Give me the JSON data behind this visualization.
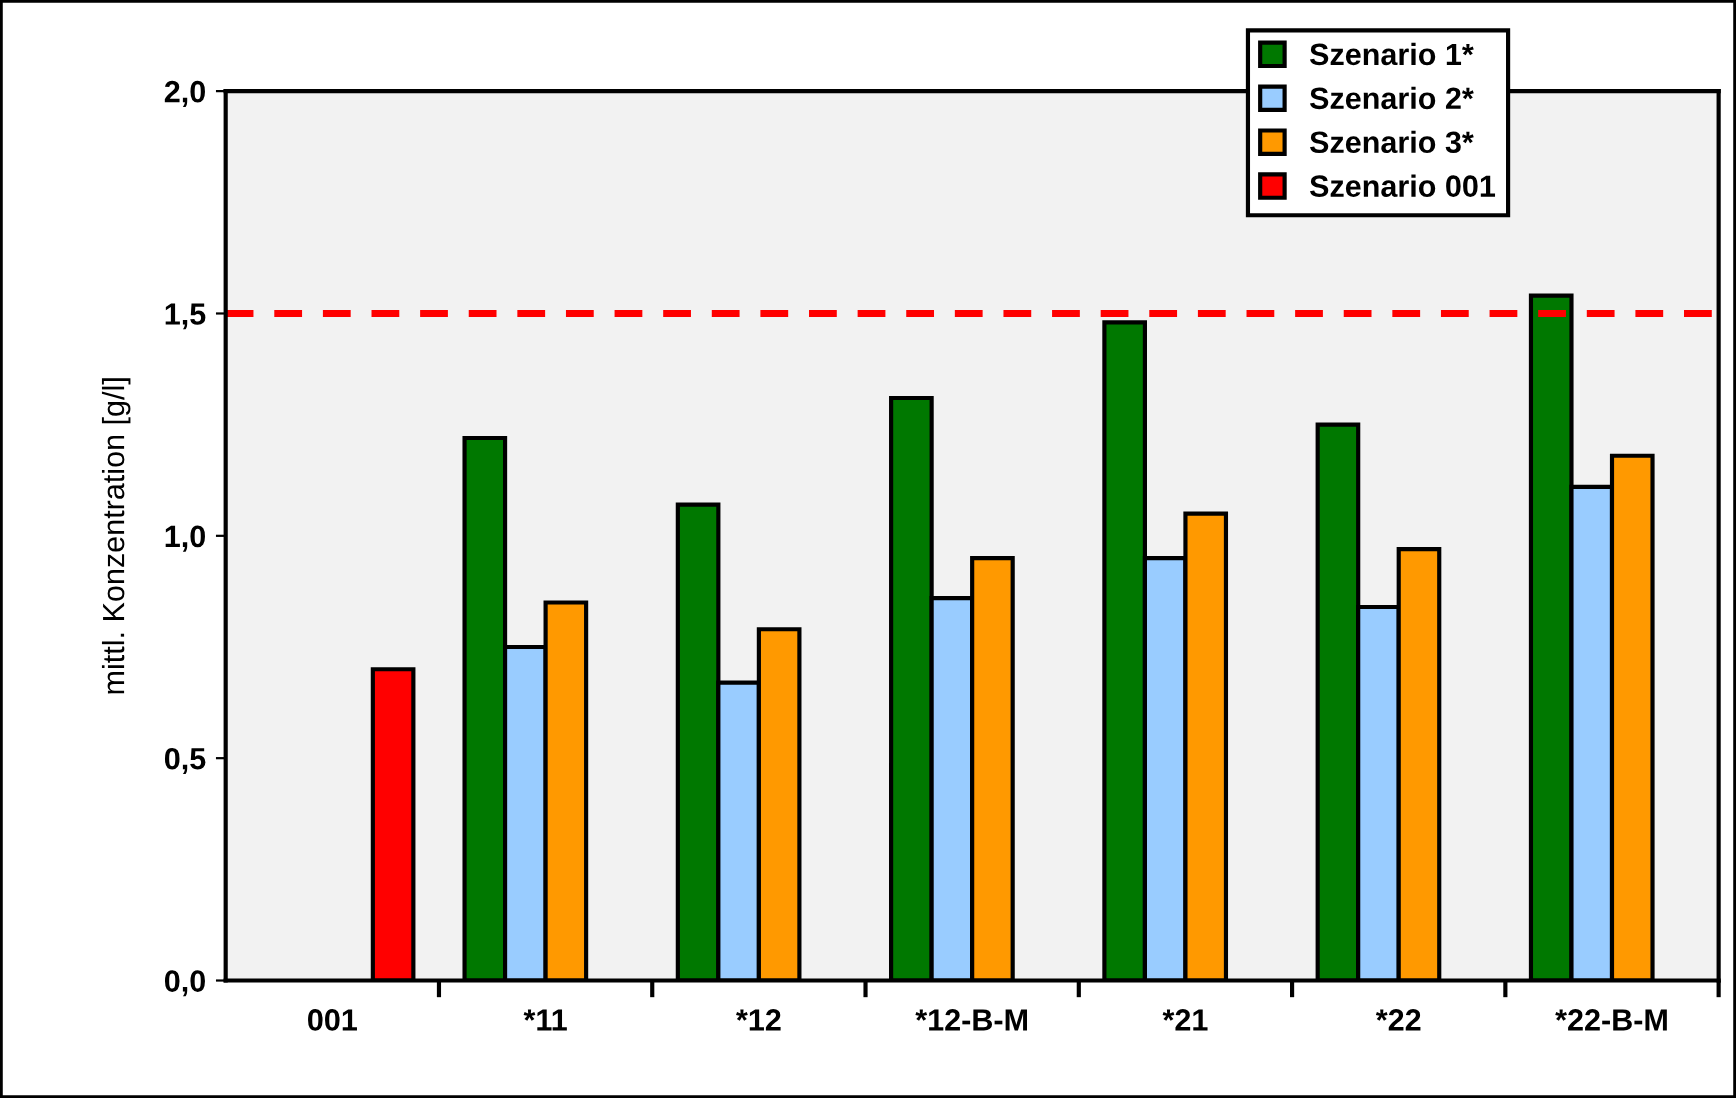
{
  "chart_data": {
    "type": "bar",
    "ylabel": "mittl. Konzentration [g/l]",
    "categories": [
      "001",
      "*11",
      "*12",
      "*12-B-M",
      "*21",
      "*22",
      "*22-B-M"
    ],
    "series": [
      {
        "name": "Szenario 1*",
        "color": "#007800",
        "values": [
          null,
          1.22,
          1.07,
          1.31,
          1.48,
          1.25,
          1.54
        ]
      },
      {
        "name": "Szenario 2*",
        "color": "#99ccff",
        "values": [
          null,
          0.75,
          0.67,
          0.86,
          0.95,
          0.84,
          1.11
        ]
      },
      {
        "name": "Szenario 3*",
        "color": "#ff9900",
        "values": [
          null,
          0.85,
          0.79,
          0.95,
          1.05,
          0.97,
          1.18
        ]
      },
      {
        "name": "Szenario 001",
        "color": "#ff0000",
        "values": [
          0.7,
          null,
          null,
          null,
          null,
          null,
          null
        ]
      }
    ],
    "ylim": [
      0,
      2
    ],
    "yticks": [
      {
        "value": 0,
        "label": "0,0"
      },
      {
        "value": 0.5,
        "label": "0,5"
      },
      {
        "value": 1,
        "label": "1,0"
      },
      {
        "value": 1.5,
        "label": "1,5"
      },
      {
        "value": 2,
        "label": "2,0"
      }
    ],
    "ref_lines": [
      {
        "axis": "y",
        "value": 1.5,
        "color": "#ff0000",
        "line_style": "dashed"
      }
    ],
    "grid": false,
    "legend": "top right"
  }
}
